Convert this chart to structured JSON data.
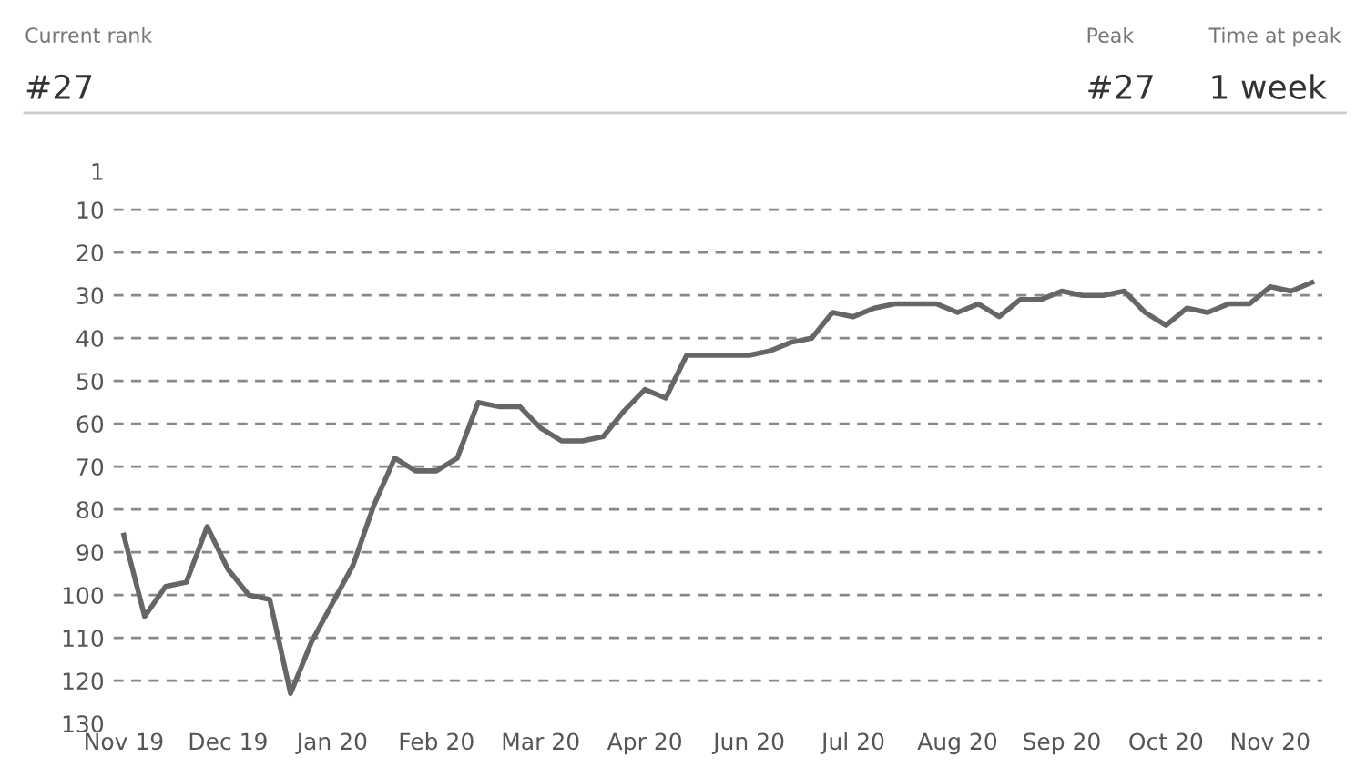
{
  "chart_data": {
    "type": "line",
    "annotations": [
      "Current rank",
      "#27",
      "Peak",
      "#27",
      "Time at peak",
      "1 week"
    ],
    "categories": [
      "Nov 19",
      null,
      null,
      null,
      null,
      "Dec 19",
      null,
      null,
      null,
      null,
      "Jan 20",
      null,
      null,
      null,
      null,
      "Feb 20",
      null,
      null,
      null,
      null,
      "Mar 20",
      null,
      null,
      null,
      null,
      "Apr 20",
      null,
      null,
      null,
      null,
      "Jun 20",
      null,
      null,
      null,
      null,
      "Jul 20",
      null,
      null,
      null,
      null,
      "Aug 20",
      null,
      null,
      null,
      null,
      "Sep 20",
      null,
      null,
      null,
      null,
      "Oct 20",
      null,
      null,
      null,
      null,
      "Nov 20",
      null,
      null
    ],
    "series": [
      {
        "color": "#666666",
        "values": [
          86,
          105,
          98,
          97,
          84,
          94,
          100,
          101,
          123,
          111,
          102,
          93,
          79,
          68,
          71,
          71,
          68,
          55,
          56,
          56,
          61,
          64,
          64,
          63,
          57,
          52,
          54,
          44,
          44,
          44,
          44,
          43,
          41,
          40,
          34,
          35,
          33,
          32,
          32,
          32,
          34,
          32,
          35,
          31,
          31,
          29,
          30,
          30,
          29,
          34,
          37,
          33,
          34,
          32,
          32,
          28,
          29,
          27
        ]
      }
    ],
    "ylim": [
      130,
      1
    ],
    "yticks": [
      1,
      10,
      20,
      30,
      40,
      50,
      60,
      70,
      80,
      90,
      100,
      110,
      120,
      130
    ],
    "grid": "y",
    "line_style": "solid",
    "marker": "none",
    "legend": false
  }
}
